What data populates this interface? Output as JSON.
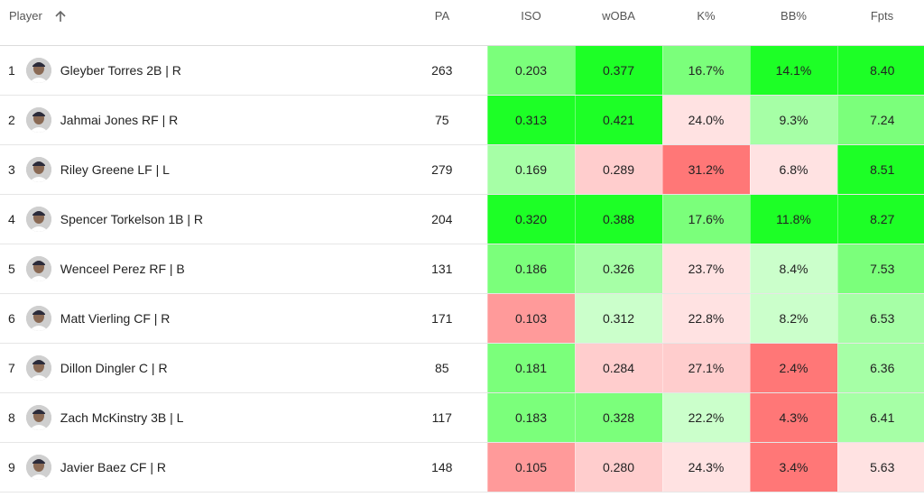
{
  "header": {
    "player": "Player",
    "pa": "PA",
    "iso": "ISO",
    "woba": "wOBA",
    "k_pct": "K%",
    "bb_pct": "BB%",
    "fpts": "Fpts",
    "sort_icon": "arrow-up-icon"
  },
  "colors": {
    "heat_strong_green": "#1dff26",
    "heat_green": "#7bff7b",
    "heat_light_green": "#a6ffa6",
    "heat_pale_green": "#cbffcb",
    "heat_pale_red": "#ffe2e2",
    "heat_light_red": "#ffcdcd",
    "heat_red": "#ff9a9a",
    "heat_strong_red": "#ff7777"
  },
  "rows": [
    {
      "rank": "1",
      "name": "Gleyber Torres 2B | R",
      "pa": "263",
      "iso": "0.203",
      "woba": "0.377",
      "k": "16.7%",
      "bb": "14.1%",
      "fpts": "8.40",
      "iso_color": "#7bff7b",
      "woba_color": "#1dff26",
      "k_color": "#7bff7b",
      "bb_color": "#1dff26",
      "fpts_color": "#1dff26"
    },
    {
      "rank": "2",
      "name": "Jahmai Jones RF | R",
      "pa": "75",
      "iso": "0.313",
      "woba": "0.421",
      "k": "24.0%",
      "bb": "9.3%",
      "fpts": "7.24",
      "iso_color": "#1dff26",
      "woba_color": "#1dff26",
      "k_color": "#ffe2e2",
      "bb_color": "#a6ffa6",
      "fpts_color": "#7bff7b"
    },
    {
      "rank": "3",
      "name": "Riley Greene LF | L",
      "pa": "279",
      "iso": "0.169",
      "woba": "0.289",
      "k": "31.2%",
      "bb": "6.8%",
      "fpts": "8.51",
      "iso_color": "#a6ffa6",
      "woba_color": "#ffcdcd",
      "k_color": "#ff7777",
      "bb_color": "#ffe2e2",
      "fpts_color": "#1dff26"
    },
    {
      "rank": "4",
      "name": "Spencer Torkelson 1B | R",
      "pa": "204",
      "iso": "0.320",
      "woba": "0.388",
      "k": "17.6%",
      "bb": "11.8%",
      "fpts": "8.27",
      "iso_color": "#1dff26",
      "woba_color": "#1dff26",
      "k_color": "#7bff7b",
      "bb_color": "#1dff26",
      "fpts_color": "#1dff26"
    },
    {
      "rank": "5",
      "name": "Wenceel Perez RF | B",
      "pa": "131",
      "iso": "0.186",
      "woba": "0.326",
      "k": "23.7%",
      "bb": "8.4%",
      "fpts": "7.53",
      "iso_color": "#7bff7b",
      "woba_color": "#a6ffa6",
      "k_color": "#ffe2e2",
      "bb_color": "#cbffcb",
      "fpts_color": "#7bff7b"
    },
    {
      "rank": "6",
      "name": "Matt Vierling CF | R",
      "pa": "171",
      "iso": "0.103",
      "woba": "0.312",
      "k": "22.8%",
      "bb": "8.2%",
      "fpts": "6.53",
      "iso_color": "#ff9a9a",
      "woba_color": "#cbffcb",
      "k_color": "#ffe2e2",
      "bb_color": "#cbffcb",
      "fpts_color": "#a6ffa6"
    },
    {
      "rank": "7",
      "name": "Dillon Dingler C | R",
      "pa": "85",
      "iso": "0.181",
      "woba": "0.284",
      "k": "27.1%",
      "bb": "2.4%",
      "fpts": "6.36",
      "iso_color": "#7bff7b",
      "woba_color": "#ffcdcd",
      "k_color": "#ffcdcd",
      "bb_color": "#ff7777",
      "fpts_color": "#a6ffa6"
    },
    {
      "rank": "8",
      "name": "Zach McKinstry 3B | L",
      "pa": "117",
      "iso": "0.183",
      "woba": "0.328",
      "k": "22.2%",
      "bb": "4.3%",
      "fpts": "6.41",
      "iso_color": "#7bff7b",
      "woba_color": "#7bff7b",
      "k_color": "#cbffcb",
      "bb_color": "#ff7777",
      "fpts_color": "#a6ffa6"
    },
    {
      "rank": "9",
      "name": "Javier Baez CF | R",
      "pa": "148",
      "iso": "0.105",
      "woba": "0.280",
      "k": "24.3%",
      "bb": "3.4%",
      "fpts": "5.63",
      "iso_color": "#ff9a9a",
      "woba_color": "#ffcdcd",
      "k_color": "#ffe2e2",
      "bb_color": "#ff7777",
      "fpts_color": "#ffe2e2"
    }
  ]
}
